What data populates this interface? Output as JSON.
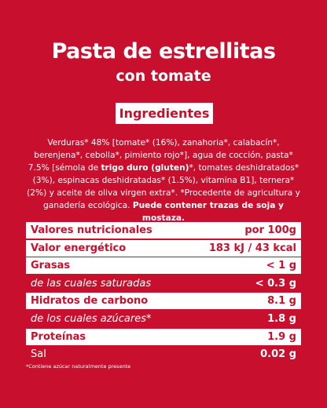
{
  "header": {
    "title": "Pasta de estrellitas",
    "subtitle": "con tomate"
  },
  "ingredients": {
    "heading": "Ingredientes",
    "segments": [
      {
        "text": "Verduras* 48% [tomate* (16%), zanahoria*, calabacín*, berenjena*, cebolla*, pimiento rojo*], agua de cocción, pasta* 7.5% [sémola de ",
        "bold": false
      },
      {
        "text": "trigo duro (gluten)",
        "bold": true
      },
      {
        "text": "*, tomates deshidratados* (3%), espinacas deshidratadas* (1.5%), vitamina B1], ternera* (2%) y aceite de oliva virgen extra*. *Procedente de agricultura y ganadería ecológica. ",
        "bold": false
      },
      {
        "text": "Puede contener trazas de soja y mostaza.",
        "bold": true
      }
    ]
  },
  "table": {
    "rows": [
      {
        "label": "Valores nutricionales",
        "value": "por 100g",
        "style": "main"
      },
      {
        "label": "Valor energético",
        "value": "183 kJ / 43 kcal",
        "style": "main"
      },
      {
        "label": "Grasas",
        "value": "< 1 g",
        "style": "main"
      },
      {
        "label": "de las cuales saturadas",
        "value": "< 0.3 g",
        "style": "sub"
      },
      {
        "label": "Hidratos de carbono",
        "value": "8.1 g",
        "style": "main"
      },
      {
        "label": "de los cuales azúcares*",
        "value": "1.8 g",
        "style": "sub"
      },
      {
        "label": "Proteínas",
        "value": "1.9 g",
        "style": "main"
      },
      {
        "label": "Sal",
        "value": "0.02 g",
        "style": "plain"
      }
    ]
  },
  "footnote": "*Contiene azúcar naturalmente presente"
}
